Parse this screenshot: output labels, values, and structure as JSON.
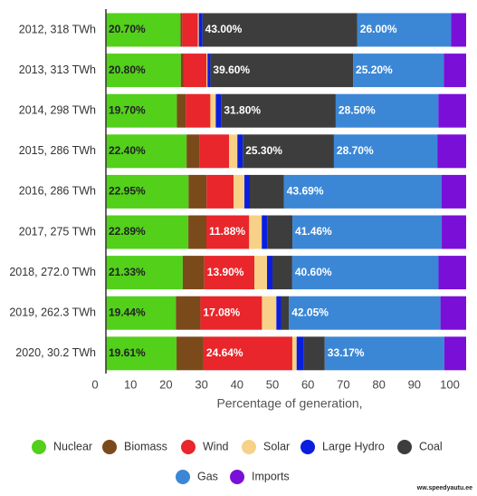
{
  "chart_data": {
    "type": "stacked_barh",
    "categories": [
      "2012, 318 TWh",
      "2013, 313 TWh",
      "2014, 298 TWh",
      "2015, 286 TWh",
      "2016, 286 TWh",
      "2017, 275 TWh",
      "2018, 272.0 TWh",
      "2019, 262.3 TWh",
      "2020, 30.2 TWh"
    ],
    "series": [
      {
        "name": "Nuclear",
        "color": "#52d01a",
        "values": [
          20.7,
          20.8,
          19.7,
          22.4,
          22.95,
          22.89,
          21.33,
          19.44,
          19.61
        ],
        "value_labels": [
          "20.70%",
          "20.80%",
          "19.70%",
          "22.40%",
          "22.95%",
          "22.89%",
          "21.33%",
          "19.44%",
          "19.61%"
        ]
      },
      {
        "name": "Biomass",
        "color": "#7b4a1a",
        "values": [
          0.5,
          0.8,
          2.5,
          3.5,
          5,
          5,
          6,
          6.8,
          7.5
        ]
      },
      {
        "name": "Wind",
        "color": "#e8262b",
        "values": [
          4.3,
          6.3,
          6.8,
          8.3,
          7.5,
          11.88,
          13.9,
          17.08,
          24.64
        ],
        "value_labels": [
          null,
          null,
          null,
          null,
          null,
          "11.88%",
          "13.90%",
          "17.08%",
          "24.64%"
        ]
      },
      {
        "name": "Solar",
        "color": "#f7d187",
        "values": [
          0.3,
          0.3,
          1.5,
          2.3,
          3,
          3.5,
          3.5,
          4,
          1.2
        ]
      },
      {
        "name": "Large Hydro",
        "color": "#0a1ee0",
        "values": [
          1,
          0.8,
          1.5,
          1.5,
          1.5,
          1.5,
          1.5,
          1.3,
          2
        ]
      },
      {
        "name": "Coal",
        "color": "#3d3d3d",
        "values": [
          43,
          39.6,
          31.8,
          25.3,
          9.5,
          7,
          5.5,
          2.2,
          5.8
        ],
        "value_labels": [
          "43.00%",
          "39.60%",
          "31.80%",
          "25.30%",
          null,
          null,
          null,
          null,
          null
        ]
      },
      {
        "name": "Gas",
        "color": "#3b87d6",
        "values": [
          26,
          25.2,
          28.5,
          28.7,
          43.69,
          41.46,
          40.6,
          42.05,
          33.17
        ],
        "value_labels": [
          "26.00%",
          "25.20%",
          "28.50%",
          "28.70%",
          "43.69%",
          "41.46%",
          "40.60%",
          "42.05%",
          "33.17%"
        ]
      },
      {
        "name": "Imports",
        "color": "#7a0fd8",
        "values": [
          4.2,
          6.2,
          7.7,
          8,
          6.86,
          6.77,
          7.67,
          7.13,
          6.08
        ]
      }
    ],
    "xlabel": "Percentage of generation,",
    "xlim": [
      0,
      100
    ],
    "xticks": [
      0,
      10,
      20,
      30,
      40,
      50,
      60,
      70,
      80,
      90,
      100
    ],
    "legend": "bottom",
    "watermark": "ww.speedyautu.ee"
  }
}
